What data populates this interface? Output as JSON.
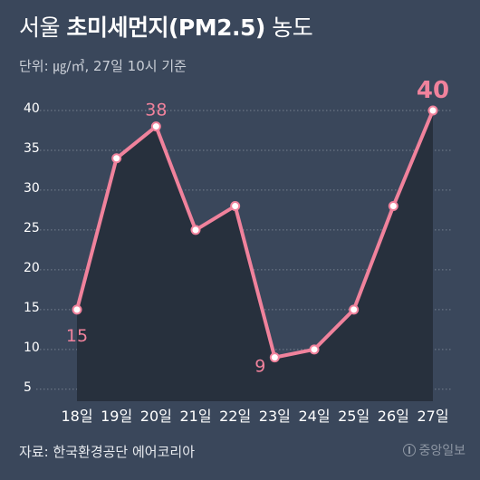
{
  "header": {
    "title_light": "서울 ",
    "title_bold": "초미세먼지(PM2.5)",
    "title_tail": " 농도",
    "subtitle": "단위: ㎍/㎥, 27일 10시 기준"
  },
  "footer": {
    "source": "자료: 한국환경공단 에어코리아",
    "logo_text": "중앙일보"
  },
  "colors": {
    "background": "#3a475b",
    "area": "#27303d",
    "line": "#f0829c",
    "grid": "#76808f",
    "axis_text": "#ffffff",
    "label": "#f0829c"
  },
  "chart_data": {
    "type": "area",
    "categories": [
      "18일",
      "19일",
      "20일",
      "21일",
      "22일",
      "23일",
      "24일",
      "25일",
      "26일",
      "27일"
    ],
    "series": [
      {
        "values": [
          15,
          34,
          38,
          25,
          28,
          9,
          10,
          15,
          28,
          40
        ]
      }
    ],
    "y_ticks": [
      5,
      10,
      15,
      20,
      25,
      30,
      35,
      40
    ],
    "ylim": [
      3.5,
      42.5
    ],
    "labeled_points": [
      {
        "index": 0,
        "text": "15",
        "position": "below",
        "emphasis": false
      },
      {
        "index": 2,
        "text": "38",
        "position": "above",
        "emphasis": false
      },
      {
        "index": 5,
        "text": "9",
        "position": "left",
        "emphasis": false
      },
      {
        "index": 9,
        "text": "40",
        "position": "above",
        "emphasis": true
      }
    ],
    "grid": "dotted-horizontal",
    "xlabel": "",
    "ylabel": ""
  }
}
